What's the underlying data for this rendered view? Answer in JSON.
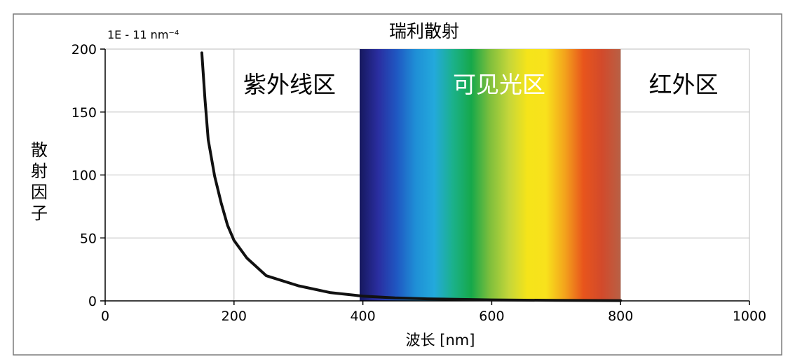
{
  "chart_data": {
    "type": "line",
    "title": "瑞利散射",
    "scale_note": "1E - 11 nm⁻⁴",
    "xlabel": "波长 [nm]",
    "ylabel": "散射因子",
    "xlim": [
      0,
      1000
    ],
    "ylim": [
      0,
      200
    ],
    "x_ticks": [
      0,
      200,
      400,
      600,
      800,
      1000
    ],
    "y_ticks": [
      0,
      50,
      100,
      150,
      200
    ],
    "grid": true,
    "series": [
      {
        "x": [
          150,
          155,
          160,
          170,
          180,
          190,
          200,
          220,
          250,
          300,
          350,
          400,
          450,
          500,
          600,
          700,
          800
        ],
        "y": [
          197,
          160,
          128,
          99,
          78,
          60,
          48,
          34,
          20,
          12,
          6.5,
          3.8,
          2.4,
          1.6,
          0.8,
          0.4,
          0.2
        ]
      }
    ],
    "region_labels": [
      {
        "text": "紫外线区",
        "color": "#000000"
      },
      {
        "text": "可见光区",
        "color": "#ffffff"
      },
      {
        "text": "红外区",
        "color": "#000000"
      }
    ],
    "visible_band": {
      "x_range": [
        395,
        800
      ],
      "y_range": [
        0,
        200
      ],
      "colors": [
        "#16185e",
        "#2a2ea0",
        "#1f58c2",
        "#1f8fd6",
        "#23a9dc",
        "#1bb18b",
        "#16a84a",
        "#7fbf3c",
        "#c4d63a",
        "#f5e41a",
        "#f8e21c",
        "#f3a41c",
        "#e8551c",
        "#d24a2b",
        "#b86045"
      ]
    }
  }
}
